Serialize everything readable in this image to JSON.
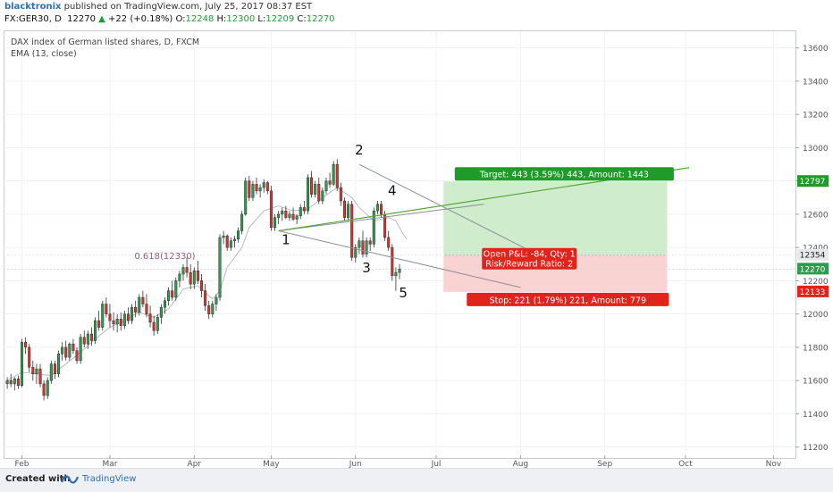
{
  "header": {
    "author": "blacktronix",
    "published": " published on TradingView.com, July 25, 2017 08:37 EST",
    "symbol": "FX:GER30, D",
    "price": "12270",
    "change": "+22 (+0.18%)",
    "o_label": "O:",
    "o_value": "12248",
    "h_label": "H:",
    "h_value": "12300",
    "l_label": "L:",
    "l_value": "12209",
    "c_label": "C:",
    "c_value": "12270"
  },
  "legend": {
    "line1": "DAX index of German listed shares, D, FXCM",
    "line2": "EMA (13, close)"
  },
  "footer": {
    "created": "Created with",
    "brand": "TradingView"
  },
  "colors": {
    "up": "#2e9a4f",
    "down": "#d6322e",
    "ema": "#b7bac0",
    "trend": "#8a8f96",
    "green_line": "#5aa83a",
    "target_zone": "#cfeccc",
    "stop_zone": "#f9d2d2",
    "target_label_bg": "#1f9b2a",
    "stop_label_bg": "#e0241c",
    "fib": "#9c5a7a"
  },
  "chart_data": {
    "type": "candlestick",
    "y_axis": {
      "ticks": [
        11200,
        11400,
        11600,
        11800,
        12000,
        12200,
        12400,
        12600,
        12800,
        13000,
        13200,
        13400,
        13600
      ],
      "range": [
        11150,
        13700
      ]
    },
    "x_axis": {
      "labels": [
        {
          "label": "Feb",
          "day": 4
        },
        {
          "label": "Mar",
          "day": 28
        },
        {
          "label": "Apr",
          "day": 51
        },
        {
          "label": "May",
          "day": 72
        },
        {
          "label": "Jun",
          "day": 95
        },
        {
          "label": "Jul",
          "day": 117
        },
        {
          "label": "Aug",
          "day": 140
        },
        {
          "label": "Sep",
          "day": 163
        },
        {
          "label": "Oct",
          "day": 185
        },
        {
          "label": "Nov",
          "day": 209
        }
      ],
      "range": [
        -1,
        215
      ]
    },
    "candles": [
      [
        11580,
        11620,
        11550,
        11600
      ],
      [
        11600,
        11640,
        11560,
        11580
      ],
      [
        11580,
        11620,
        11540,
        11610
      ],
      [
        11610,
        11630,
        11550,
        11570
      ],
      [
        11570,
        11850,
        11560,
        11830
      ],
      [
        11830,
        11860,
        11760,
        11800
      ],
      [
        11800,
        11820,
        11650,
        11680
      ],
      [
        11680,
        11720,
        11600,
        11640
      ],
      [
        11640,
        11700,
        11580,
        11670
      ],
      [
        11670,
        11700,
        11560,
        11580
      ],
      [
        11580,
        11600,
        11480,
        11510
      ],
      [
        11510,
        11620,
        11490,
        11600
      ],
      [
        11600,
        11720,
        11580,
        11700
      ],
      [
        11700,
        11720,
        11610,
        11640
      ],
      [
        11640,
        11780,
        11620,
        11760
      ],
      [
        11760,
        11830,
        11720,
        11800
      ],
      [
        11800,
        11840,
        11720,
        11740
      ],
      [
        11740,
        11830,
        11720,
        11820
      ],
      [
        11820,
        11850,
        11760,
        11780
      ],
      [
        11780,
        11800,
        11700,
        11720
      ],
      [
        11720,
        11880,
        11700,
        11860
      ],
      [
        11860,
        11900,
        11800,
        11820
      ],
      [
        11820,
        11900,
        11790,
        11880
      ],
      [
        11880,
        11920,
        11810,
        11840
      ],
      [
        11840,
        11980,
        11820,
        11960
      ],
      [
        11960,
        12020,
        11900,
        11920
      ],
      [
        11920,
        12080,
        11900,
        12060
      ],
      [
        12060,
        12100,
        11980,
        12000
      ],
      [
        12000,
        12060,
        11920,
        11960
      ],
      [
        11960,
        12010,
        11900,
        11940
      ],
      [
        11940,
        12000,
        11890,
        11970
      ],
      [
        11970,
        12010,
        11900,
        11930
      ],
      [
        11930,
        12020,
        11910,
        12000
      ],
      [
        12000,
        12040,
        11940,
        11960
      ],
      [
        11960,
        12060,
        11940,
        12040
      ],
      [
        12040,
        12080,
        11980,
        12010
      ],
      [
        12010,
        12120,
        11990,
        12100
      ],
      [
        12100,
        12140,
        12040,
        12060
      ],
      [
        12060,
        12120,
        11980,
        12000
      ],
      [
        12000,
        12050,
        11920,
        11950
      ],
      [
        11950,
        11990,
        11870,
        11900
      ],
      [
        11900,
        12000,
        11880,
        11980
      ],
      [
        11980,
        12060,
        11940,
        12040
      ],
      [
        12040,
        12100,
        12000,
        12080
      ],
      [
        12080,
        12160,
        12050,
        12140
      ],
      [
        12140,
        12200,
        12080,
        12100
      ],
      [
        12100,
        12220,
        12080,
        12200
      ],
      [
        12200,
        12260,
        12160,
        12240
      ],
      [
        12240,
        12300,
        12200,
        12280
      ],
      [
        12280,
        12340,
        12220,
        12250
      ],
      [
        12250,
        12300,
        12150,
        12180
      ],
      [
        12180,
        12280,
        12150,
        12260
      ],
      [
        12260,
        12320,
        12180,
        12200
      ],
      [
        12200,
        12240,
        12100,
        12140
      ],
      [
        12140,
        12180,
        12020,
        12050
      ],
      [
        12050,
        12080,
        11970,
        12000
      ],
      [
        12000,
        12080,
        11980,
        12060
      ],
      [
        12060,
        12120,
        12020,
        12100
      ],
      [
        12100,
        12480,
        12080,
        12460
      ],
      [
        12460,
        12500,
        12420,
        12470
      ],
      [
        12470,
        12480,
        12380,
        12400
      ],
      [
        12400,
        12460,
        12380,
        12440
      ],
      [
        12440,
        12470,
        12400,
        12450
      ],
      [
        12450,
        12520,
        12430,
        12500
      ],
      [
        12500,
        12620,
        12480,
        12600
      ],
      [
        12600,
        12820,
        12590,
        12800
      ],
      [
        12800,
        12830,
        12680,
        12700
      ],
      [
        12700,
        12800,
        12680,
        12780
      ],
      [
        12780,
        12820,
        12720,
        12740
      ],
      [
        12740,
        12780,
        12700,
        12760
      ],
      [
        12760,
        12810,
        12730,
        12790
      ],
      [
        12790,
        12800,
        12720,
        12740
      ],
      [
        12740,
        12770,
        12500,
        12520
      ],
      [
        12520,
        12600,
        12500,
        12580
      ],
      [
        12580,
        12620,
        12540,
        12600
      ],
      [
        12600,
        12640,
        12560,
        12620
      ],
      [
        12620,
        12650,
        12570,
        12580
      ],
      [
        12580,
        12620,
        12560,
        12600
      ],
      [
        12600,
        12640,
        12560,
        12570
      ],
      [
        12570,
        12600,
        12540,
        12590
      ],
      [
        12590,
        12660,
        12570,
        12640
      ],
      [
        12640,
        12680,
        12600,
        12620
      ],
      [
        12620,
        12840,
        12600,
        12820
      ],
      [
        12820,
        12860,
        12700,
        12720
      ],
      [
        12720,
        12800,
        12700,
        12780
      ],
      [
        12780,
        12820,
        12660,
        12680
      ],
      [
        12680,
        12760,
        12660,
        12740
      ],
      [
        12740,
        12820,
        12720,
        12800
      ],
      [
        12800,
        12850,
        12760,
        12780
      ],
      [
        12780,
        12920,
        12770,
        12900
      ],
      [
        12900,
        12930,
        12740,
        12760
      ],
      [
        12760,
        12790,
        12650,
        12680
      ],
      [
        12680,
        12700,
        12560,
        12580
      ],
      [
        12580,
        12680,
        12560,
        12660
      ],
      [
        12660,
        12680,
        12320,
        12340
      ],
      [
        12340,
        12420,
        12310,
        12400
      ],
      [
        12400,
        12460,
        12360,
        12440
      ],
      [
        12440,
        12500,
        12340,
        12360
      ],
      [
        12360,
        12460,
        12340,
        12440
      ],
      [
        12440,
        12460,
        12380,
        12420
      ],
      [
        12420,
        12640,
        12400,
        12620
      ],
      [
        12620,
        12680,
        12600,
        12660
      ],
      [
        12660,
        12680,
        12580,
        12600
      ],
      [
        12600,
        12620,
        12440,
        12460
      ],
      [
        12460,
        12500,
        12380,
        12400
      ],
      [
        12400,
        12420,
        12200,
        12230
      ],
      [
        12230,
        12280,
        12140,
        12250
      ],
      [
        12250,
        12300,
        12209,
        12270
      ]
    ],
    "ema": [
      [
        0,
        11600
      ],
      [
        4,
        11650
      ],
      [
        8,
        11640
      ],
      [
        12,
        11630
      ],
      [
        16,
        11700
      ],
      [
        20,
        11770
      ],
      [
        24,
        11850
      ],
      [
        28,
        11920
      ],
      [
        32,
        11960
      ],
      [
        36,
        12010
      ],
      [
        40,
        11980
      ],
      [
        44,
        12030
      ],
      [
        48,
        12150
      ],
      [
        52,
        12170
      ],
      [
        56,
        12090
      ],
      [
        58,
        12140
      ],
      [
        60,
        12280
      ],
      [
        64,
        12400
      ],
      [
        66,
        12520
      ],
      [
        70,
        12620
      ],
      [
        74,
        12650
      ],
      [
        78,
        12620
      ],
      [
        82,
        12630
      ],
      [
        86,
        12700
      ],
      [
        90,
        12760
      ],
      [
        94,
        12700
      ],
      [
        96,
        12640
      ],
      [
        100,
        12560
      ],
      [
        104,
        12580
      ],
      [
        106,
        12560
      ],
      [
        108,
        12480
      ],
      [
        109,
        12450
      ]
    ],
    "drawings": {
      "channel_upper": [
        [
          74,
          12500
        ],
        [
          130,
          12660
        ]
      ],
      "channel_lower": [
        [
          74,
          12500
        ],
        [
          140,
          12160
        ]
      ],
      "green_line": [
        [
          74,
          12500
        ],
        [
          186,
          12880
        ]
      ],
      "gray_wedge": [
        [
          96,
          12900
        ],
        [
          148,
          12320
        ]
      ],
      "pivot_labels": [
        {
          "text": "1",
          "day": 76,
          "price": 12420
        },
        {
          "text": "2",
          "day": 96,
          "price": 12960
        },
        {
          "text": "3",
          "day": 98,
          "price": 12250
        },
        {
          "text": "4",
          "day": 105,
          "price": 12715
        },
        {
          "text": "5",
          "day": 108,
          "price": 12100
        }
      ],
      "fib_label": {
        "text": "0.618(12330)",
        "day": 43,
        "price": 12330
      },
      "fib_level": 12270
    },
    "position": {
      "start_day": 119,
      "end_day": 180,
      "entry": 12354,
      "target": 12797,
      "stop": 12133,
      "target_text": "Target: 443 (3.59%) 443, Amount: 1443",
      "stop_text": "Stop: 221 (1.79%) 221, Amount: 779",
      "pnl_text": "Open P&L: -84, Qty: 1",
      "rr_text": "Risk/Reward Ratio: 2"
    },
    "axis_flags": [
      {
        "value": "12797",
        "price": 12797,
        "color": "#1f9b2a"
      },
      {
        "value": "12354",
        "price": 12354,
        "color": "#e6e8ec",
        "text": "#222"
      },
      {
        "value": "12270",
        "price": 12270,
        "color": "#2e9a4f"
      },
      {
        "value": "12133",
        "price": 12133,
        "color": "#e0241c"
      }
    ]
  }
}
